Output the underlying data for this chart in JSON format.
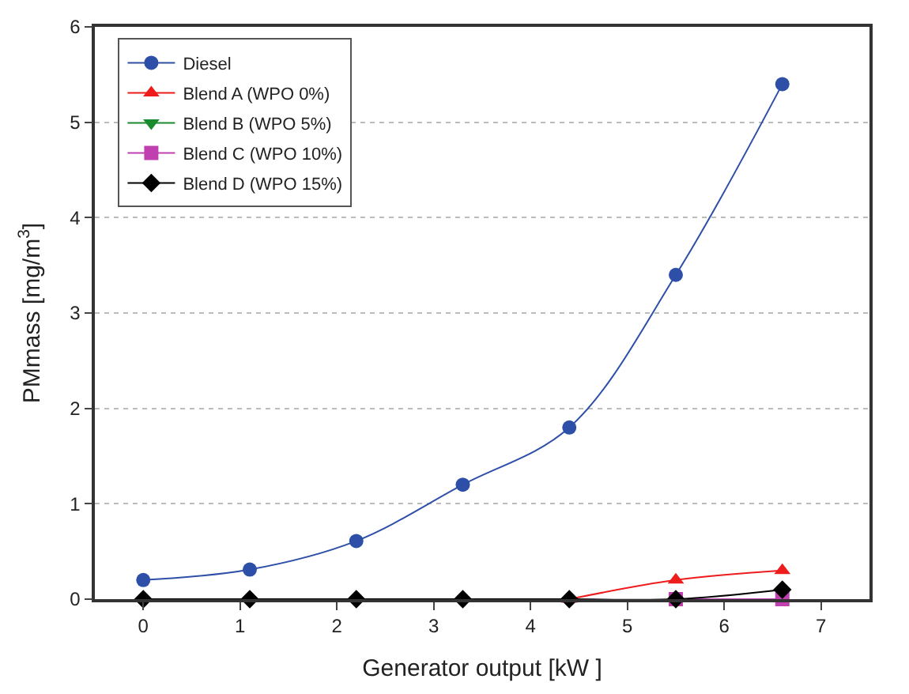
{
  "chart_data": {
    "type": "line",
    "xlabel": "Generator output [kW ]",
    "ylabel": "PMmass [mg/m$^{3}$]",
    "x": [
      0,
      1.1,
      2.2,
      3.3,
      4.4,
      5.5,
      6.6
    ],
    "series": [
      {
        "name": "Diesel",
        "color": "#2e4fa8",
        "marker": "circle",
        "values": [
          0.2,
          0.31,
          0.61,
          1.2,
          1.8,
          3.4,
          5.4
        ]
      },
      {
        "name": "Blend A (WPO 0%)",
        "color": "#ee1c1c",
        "marker": "triangle",
        "values": [
          null,
          null,
          null,
          null,
          0,
          0.2,
          0.3
        ]
      },
      {
        "name": "Blend B (WPO 5%)",
        "color": "#1a8a2e",
        "marker": "triangle-down",
        "values": [
          null,
          null,
          null,
          null,
          null,
          null,
          null
        ]
      },
      {
        "name": "Blend C (WPO 10%)",
        "color": "#c040b0",
        "marker": "square",
        "values": [
          null,
          null,
          null,
          null,
          null,
          0,
          0
        ]
      },
      {
        "name": "Blend D (WPO 15%)",
        "color": "#000000",
        "marker": "diamond",
        "values": [
          0,
          0,
          0,
          0,
          0,
          0,
          0.1
        ]
      }
    ],
    "xlim": [
      -0.5,
      7.5
    ],
    "xticks": [
      0,
      1,
      2,
      3,
      4,
      5,
      6,
      7
    ],
    "ylim": [
      0,
      6
    ],
    "yticks": [
      0,
      1,
      2,
      3,
      4,
      5,
      6
    ],
    "grid": "y",
    "legend": "top left"
  }
}
